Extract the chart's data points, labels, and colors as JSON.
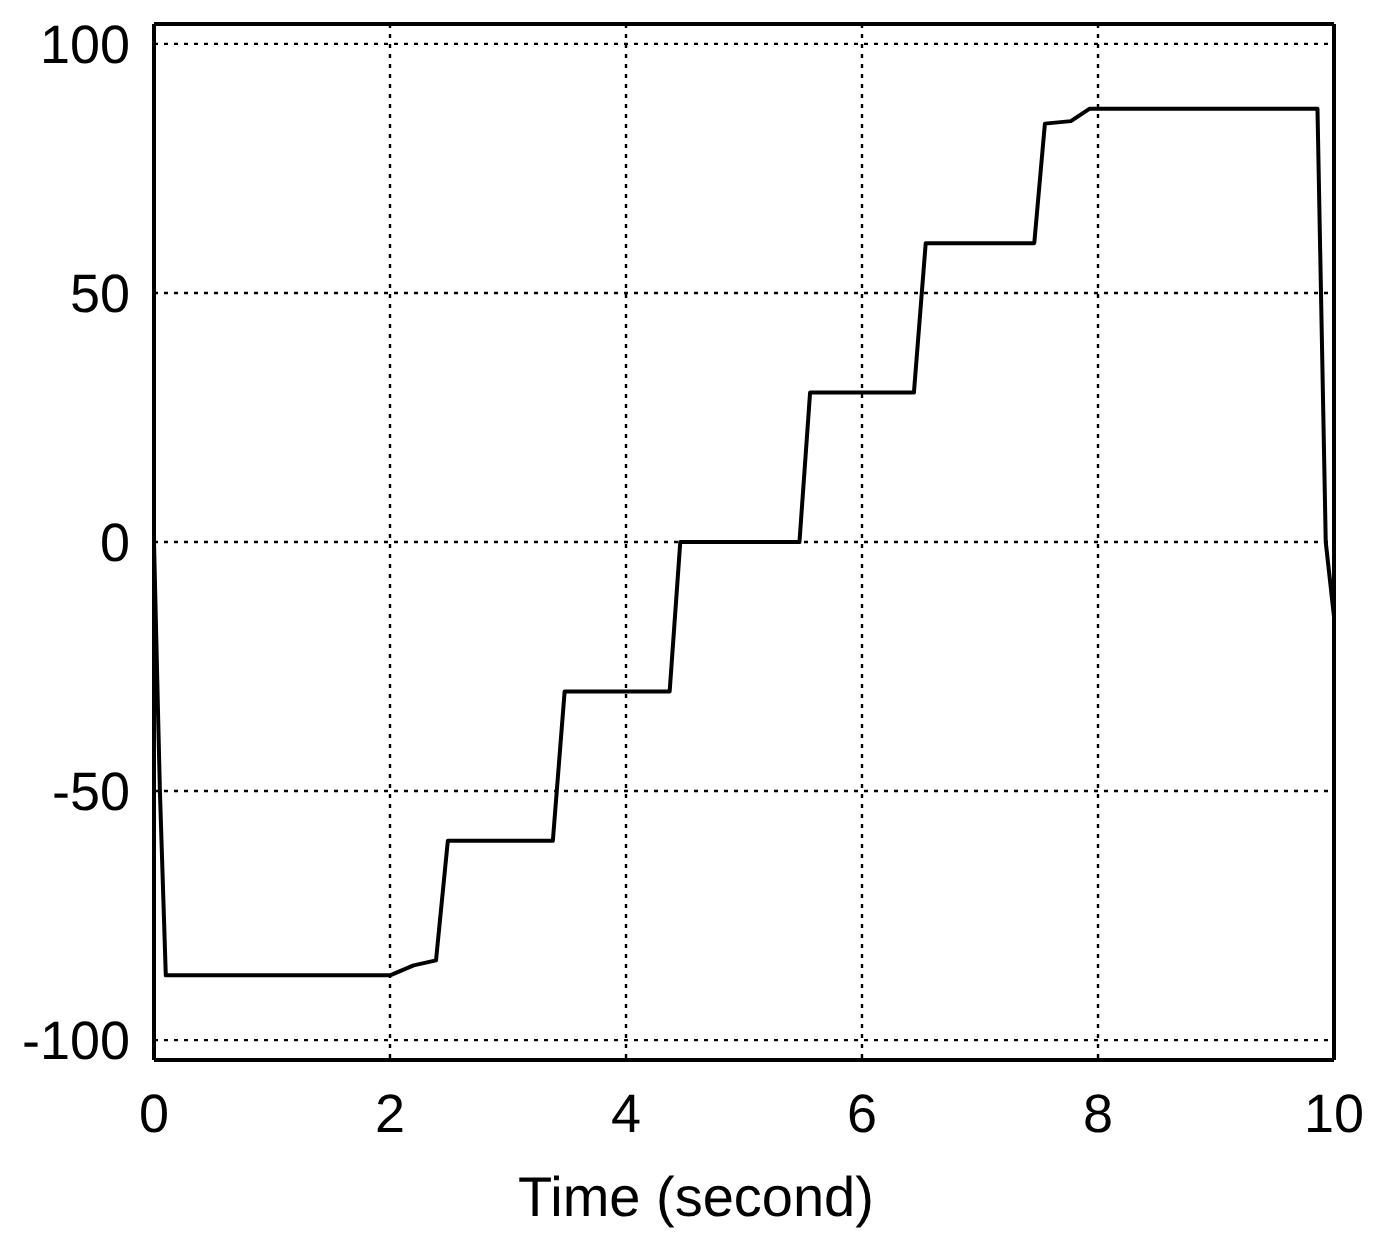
{
  "chart_data": {
    "type": "line",
    "xlabel": "Time (second)",
    "x": [
      0,
      0.05,
      0.1,
      2.0,
      2.2,
      2.39,
      2.49,
      3.38,
      3.48,
      4.37,
      4.46,
      5.47,
      5.56,
      6.44,
      6.54,
      7.46,
      7.55,
      7.77,
      7.93,
      9.86,
      9.93,
      10
    ],
    "series": [
      {
        "color": "#000000",
        "values": [
          0,
          -50,
          -87,
          -87,
          -85,
          -84,
          -60,
          -60,
          -30,
          -30,
          0,
          0,
          30,
          30,
          60,
          60,
          84,
          84.5,
          87,
          87,
          0,
          -15
        ]
      }
    ],
    "xlim": [
      0,
      10
    ],
    "ylim": [
      -104,
      104
    ],
    "xticks": [
      0,
      2,
      4,
      6,
      8,
      10
    ],
    "yticks": [
      -100,
      -50,
      0,
      50,
      100
    ],
    "grid": true
  }
}
